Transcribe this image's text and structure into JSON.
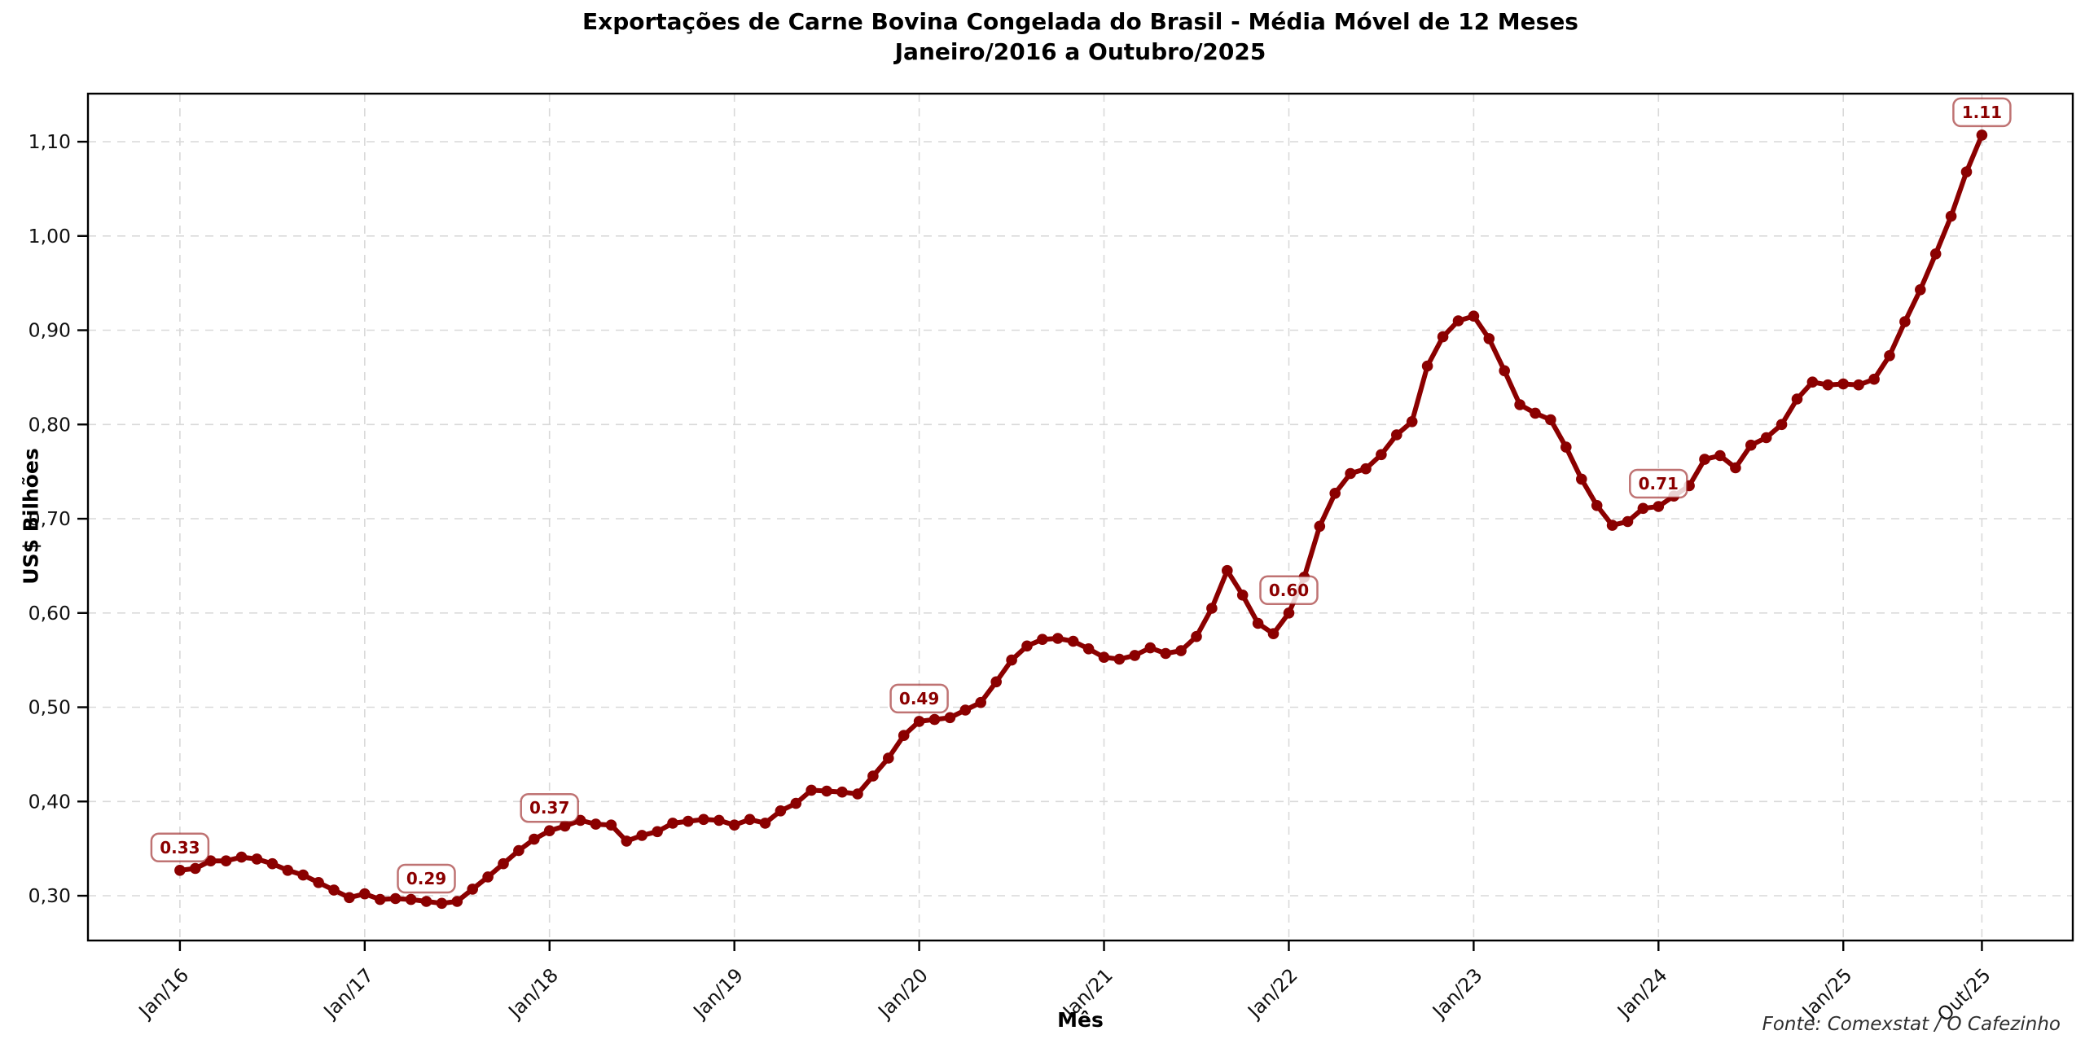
{
  "title": {
    "line1": "Exportações de Carne Bovina Congelada do Brasil - Média Móvel de 12 Meses",
    "line2": "Janeiro/2016 a Outubro/2025"
  },
  "footer": "Fonte: Comexstat / O Cafezinho",
  "chart_data": {
    "type": "line",
    "title": "Exportações de Carne Bovina Congelada do Brasil - Média Móvel de 12 Meses — Janeiro/2016 a Outubro/2025",
    "xlabel": "Mês",
    "ylabel": "US$ Bilhões",
    "legend_position": "none",
    "grid": true,
    "line_color": "#8b0000",
    "marker_color": "#8b0000",
    "grid_color": "#d9d9d9",
    "annotation_text_color": "#8b0000",
    "annotation_border_color": "rgba(139,0,0,0.55)",
    "background": "#ffffff",
    "xlim": [
      -5.97,
      122.9
    ],
    "ylim": [
      0.2525,
      1.151
    ],
    "y_ticks": [
      0.3,
      0.4,
      0.5,
      0.6,
      0.7,
      0.8,
      0.9,
      1.0,
      1.1
    ],
    "y_tick_labels": [
      "0,30",
      "0,40",
      "0,50",
      "0,60",
      "0,70",
      "0,80",
      "0,90",
      "1,00",
      "1,10"
    ],
    "x_tick_indices": [
      0,
      12,
      24,
      36,
      48,
      60,
      72,
      84,
      96,
      108,
      117
    ],
    "x_tick_labels": [
      "Jan/16",
      "Jan/17",
      "Jan/18",
      "Jan/19",
      "Jan/20",
      "Jan/21",
      "Jan/22",
      "Jan/23",
      "Jan/24",
      "Jan/25",
      "Out/25"
    ],
    "months": [
      "Jan/16",
      "Fev/16",
      "Mar/16",
      "Abr/16",
      "Mai/16",
      "Jun/16",
      "Jul/16",
      "Ago/16",
      "Set/16",
      "Out/16",
      "Nov/16",
      "Dez/16",
      "Jan/17",
      "Fev/17",
      "Mar/17",
      "Abr/17",
      "Mai/17",
      "Jun/17",
      "Jul/17",
      "Ago/17",
      "Set/17",
      "Out/17",
      "Nov/17",
      "Dez/17",
      "Jan/18",
      "Fev/18",
      "Mar/18",
      "Abr/18",
      "Mai/18",
      "Jun/18",
      "Jul/18",
      "Ago/18",
      "Set/18",
      "Out/18",
      "Nov/18",
      "Dez/18",
      "Jan/19",
      "Fev/19",
      "Mar/19",
      "Abr/19",
      "Mai/19",
      "Jun/19",
      "Jul/19",
      "Ago/19",
      "Set/19",
      "Out/19",
      "Nov/19",
      "Dez/19",
      "Jan/20",
      "Fev/20",
      "Mar/20",
      "Abr/20",
      "Mai/20",
      "Jun/20",
      "Jul/20",
      "Ago/20",
      "Set/20",
      "Out/20",
      "Nov/20",
      "Dez/20",
      "Jan/21",
      "Fev/21",
      "Mar/21",
      "Abr/21",
      "Mai/21",
      "Jun/21",
      "Jul/21",
      "Ago/21",
      "Set/21",
      "Out/21",
      "Nov/21",
      "Dez/21",
      "Jan/22",
      "Fev/22",
      "Mar/22",
      "Abr/22",
      "Mai/22",
      "Jun/22",
      "Jul/22",
      "Ago/22",
      "Set/22",
      "Out/22",
      "Nov/22",
      "Dez/22",
      "Jan/23",
      "Fev/23",
      "Mar/23",
      "Abr/23",
      "Mai/23",
      "Jun/23",
      "Jul/23",
      "Ago/23",
      "Set/23",
      "Out/23",
      "Nov/23",
      "Dez/23",
      "Jan/24",
      "Fev/24",
      "Mar/24",
      "Abr/24",
      "Mai/24",
      "Jun/24",
      "Jul/24",
      "Ago/24",
      "Set/24",
      "Out/24",
      "Nov/24",
      "Dez/24",
      "Jan/25",
      "Fev/25",
      "Mar/25",
      "Abr/25",
      "Mai/25",
      "Jun/25",
      "Jul/25",
      "Ago/25",
      "Set/25",
      "Out/25"
    ],
    "values": [
      0.327,
      0.329,
      0.337,
      0.337,
      0.341,
      0.339,
      0.334,
      0.327,
      0.322,
      0.314,
      0.306,
      0.298,
      0.302,
      0.296,
      0.297,
      0.296,
      0.294,
      0.292,
      0.294,
      0.307,
      0.32,
      0.334,
      0.348,
      0.36,
      0.369,
      0.374,
      0.38,
      0.376,
      0.375,
      0.358,
      0.364,
      0.368,
      0.377,
      0.379,
      0.381,
      0.38,
      0.375,
      0.381,
      0.377,
      0.39,
      0.398,
      0.412,
      0.411,
      0.41,
      0.408,
      0.427,
      0.446,
      0.47,
      0.485,
      0.487,
      0.489,
      0.497,
      0.505,
      0.527,
      0.55,
      0.565,
      0.572,
      0.573,
      0.57,
      0.562,
      0.553,
      0.551,
      0.555,
      0.563,
      0.557,
      0.56,
      0.575,
      0.605,
      0.645,
      0.619,
      0.589,
      0.578,
      0.6,
      0.638,
      0.692,
      0.727,
      0.748,
      0.753,
      0.768,
      0.789,
      0.803,
      0.862,
      0.893,
      0.91,
      0.915,
      0.891,
      0.857,
      0.821,
      0.812,
      0.805,
      0.776,
      0.742,
      0.714,
      0.693,
      0.697,
      0.711,
      0.713,
      0.724,
      0.735,
      0.763,
      0.767,
      0.754,
      0.778,
      0.786,
      0.8,
      0.827,
      0.845,
      0.842,
      0.843,
      0.842,
      0.848,
      0.873,
      0.909,
      0.943,
      0.981,
      1.021,
      1.068,
      1.107
    ],
    "annotations": [
      {
        "index": 0,
        "label": "0.33"
      },
      {
        "index": 16,
        "label": "0.29"
      },
      {
        "index": 24,
        "label": "0.37"
      },
      {
        "index": 48,
        "label": "0.49"
      },
      {
        "index": 72,
        "label": "0.60"
      },
      {
        "index": 96,
        "label": "0.71"
      },
      {
        "index": 117,
        "label": "1.11"
      }
    ]
  }
}
